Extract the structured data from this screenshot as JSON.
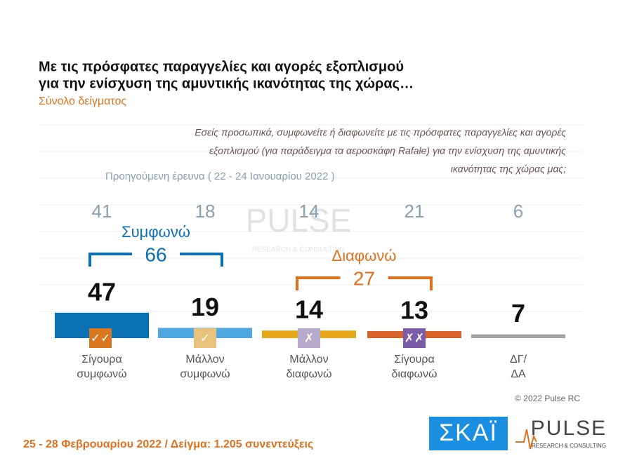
{
  "chart_data": {
    "type": "bar",
    "title": [
      "Με τις πρόσφατες παραγγελίες και αγορές εξοπλισμού",
      "για την ενίσχυση της αμυντικής ικανότητας της χώρας…"
    ],
    "subtitle": "Σύνολο δείγματος",
    "question": [
      "Εσείς προσωπικά, συμφωνείτε ή διαφωνείτε με τις πρόσφατες παραγγελίες και αγορές",
      "εξοπλισμού (για παράδειγμα τα αεροσκάφη Rafale) για την ενίσχυση της αμυντικής",
      "ικανότητας της χώρας μας;"
    ],
    "categories": [
      [
        "Σίγουρα",
        "συμφωνώ"
      ],
      [
        "Μάλλον",
        "συμφωνώ"
      ],
      [
        "Μάλλον",
        "διαφωνώ"
      ],
      [
        "Σίγουρα",
        "διαφωνώ"
      ],
      [
        "ΔΓ/",
        "ΔΑ"
      ]
    ],
    "values": [
      47,
      19,
      14,
      13,
      7
    ],
    "colors": [
      "#0a70b4",
      "#4ea8df",
      "#e7a71a",
      "#d9622b",
      "#a3a3a3"
    ],
    "previous_label": "Προηγούμενη έρευνα  ( 22 - 24  Ιανουαρίου  2022 )",
    "previous_values": [
      41,
      18,
      14,
      21,
      6
    ],
    "groups": [
      {
        "name": "Συμφωνώ",
        "value": 66,
        "color": "#0a70b4"
      },
      {
        "name": "Διαφωνώ",
        "value": 27,
        "color": "#e0721f"
      }
    ],
    "copyright": "© 2022 Pulse RC",
    "footer": "25 - 28  Φεβρουαρίου  2022  /  Δείγμα:  1.205 συνεντεύξεις",
    "logos": {
      "skai": "ΣΚΑΪ",
      "pulse": "PULSE",
      "pulse_sub": "RESEARCH & CONSULTING"
    }
  }
}
